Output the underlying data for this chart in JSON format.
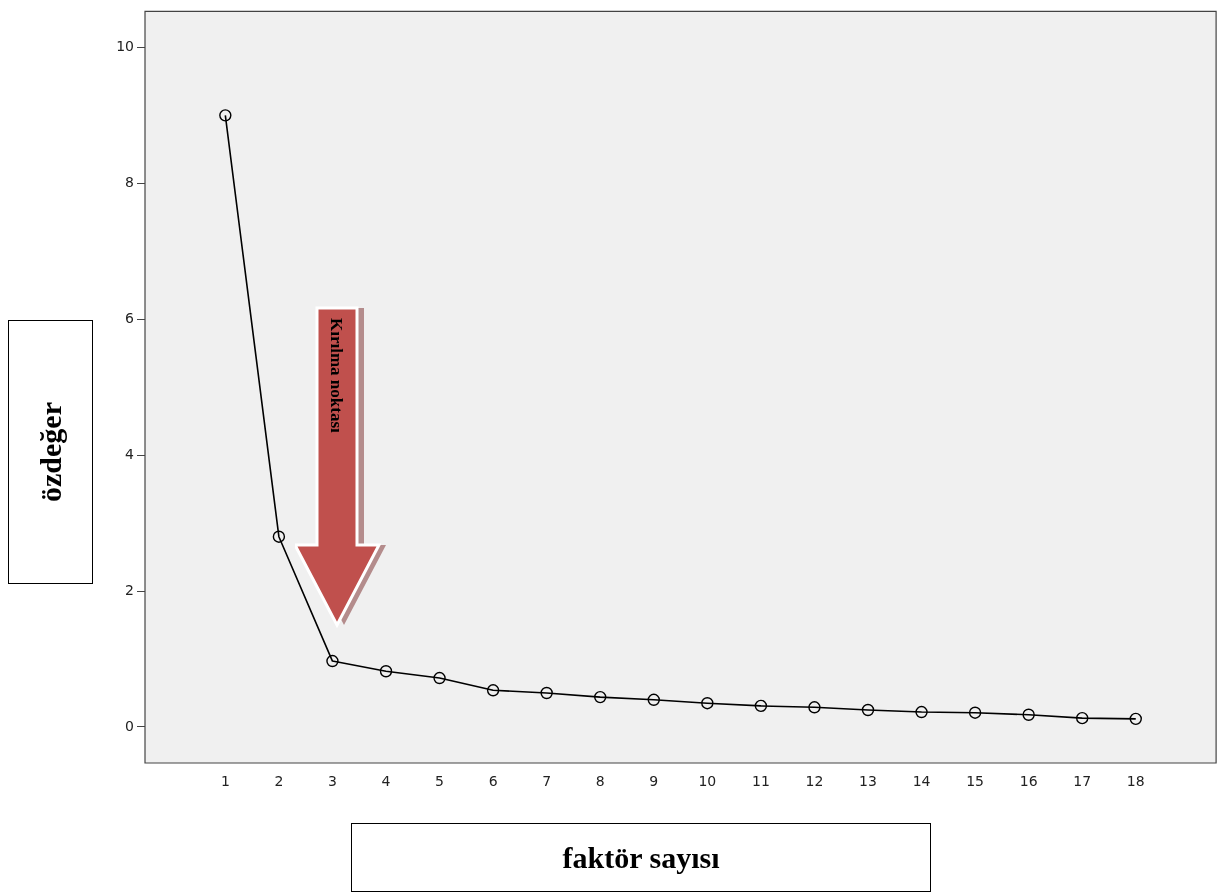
{
  "chart_data": {
    "type": "line",
    "xlabel": "faktör sayısı",
    "ylabel": "özdeğer",
    "x": [
      1,
      2,
      3,
      4,
      5,
      6,
      7,
      8,
      9,
      10,
      11,
      12,
      13,
      14,
      15,
      16,
      17,
      18
    ],
    "values": [
      9.0,
      2.8,
      0.97,
      0.82,
      0.72,
      0.54,
      0.5,
      0.44,
      0.4,
      0.35,
      0.31,
      0.29,
      0.25,
      0.22,
      0.21,
      0.18,
      0.13,
      0.12
    ],
    "color": "#000000",
    "marker": "circle",
    "line_style": "solid",
    "xlim": [
      -0.5,
      19.5
    ],
    "xticks": [
      1,
      2,
      3,
      4,
      5,
      6,
      7,
      8,
      9,
      10,
      11,
      12,
      13,
      14,
      15,
      16,
      17,
      18
    ],
    "ylim": [
      -0.53,
      10.53
    ],
    "yticks": [
      0,
      2,
      4,
      6,
      8,
      10
    ],
    "grid": false,
    "legend": false,
    "annotations": [
      "Kırılma noktası"
    ]
  }
}
